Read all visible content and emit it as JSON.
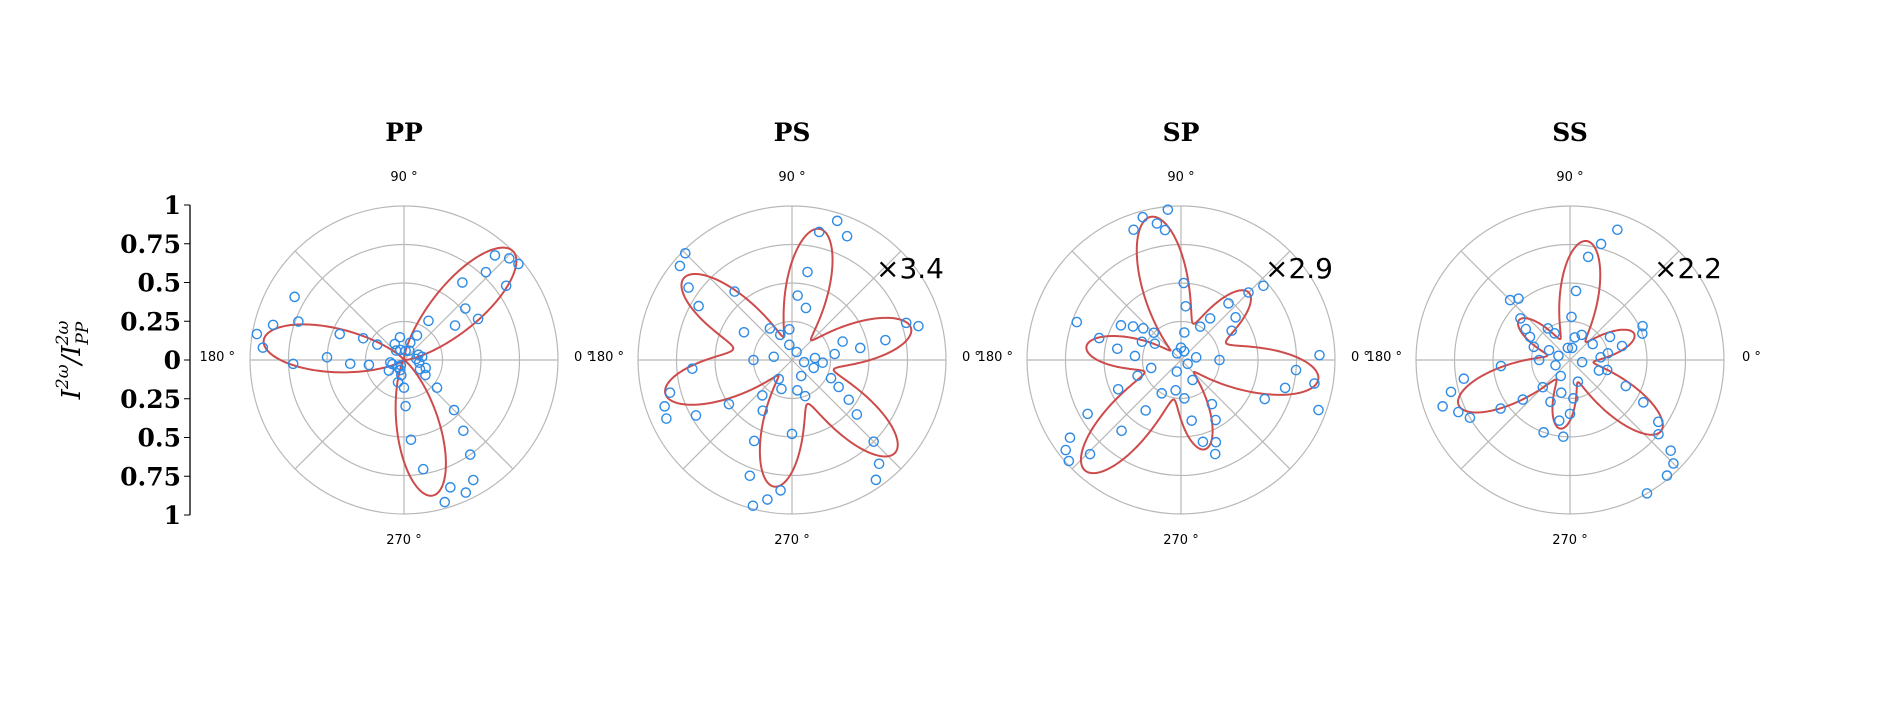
{
  "figure": {
    "ylabel": {
      "main": "I",
      "sup1": "2ω",
      "sep": "/I",
      "sup2": "2ω",
      "sub2": "PP"
    },
    "yticks": [
      "1",
      "0.75",
      "0.5",
      "0.25",
      "0",
      "0.25",
      "0.5",
      "0.75",
      "1"
    ]
  },
  "colors": {
    "fit": "#cd4b4b",
    "points": "#2e8be6",
    "grid": "#b8b8b8",
    "axis": "#000000"
  },
  "chart_data": [
    {
      "type": "scatter",
      "polar": true,
      "title": "PP",
      "scale_label": "",
      "angle_labels": [
        "90 °",
        "180 °",
        "270 °",
        "0 °"
      ],
      "rlim": [
        0,
        1
      ],
      "radial_grid": [
        0.25,
        0.5,
        0.75,
        1.0
      ],
      "angular_grid_deg": [
        0,
        45,
        90,
        135,
        180,
        225,
        270,
        315
      ],
      "fit_lobes": [
        {
          "angle": 45,
          "r": 1.0
        },
        {
          "angle": 172,
          "r": 0.92
        },
        {
          "angle": 282,
          "r": 0.9
        }
      ],
      "series": [
        {
          "name": "",
          "points": [
            [
              40,
              0.97
            ],
            [
              44,
              0.95
            ],
            [
              49,
              0.9
            ],
            [
              36,
              0.82
            ],
            [
              47,
              0.78
            ],
            [
              53,
              0.63
            ],
            [
              29,
              0.55
            ],
            [
              40,
              0.52
            ],
            [
              34,
              0.4
            ],
            [
              58,
              0.3
            ],
            [
              62,
              0.18
            ],
            [
              70,
              0.12
            ],
            [
              80,
              0.06
            ],
            [
              150,
              0.82
            ],
            [
              160,
              0.73
            ],
            [
              165,
              0.88
            ],
            [
              170,
              0.97
            ],
            [
              175,
              0.92
            ],
            [
              182,
              0.72
            ],
            [
              178,
              0.5
            ],
            [
              184,
              0.35
            ],
            [
              188,
              0.23
            ],
            [
              158,
              0.45
            ],
            [
              152,
              0.3
            ],
            [
              150,
              0.2
            ],
            [
              286,
              0.96
            ],
            [
              290,
              0.88
            ],
            [
              295,
              0.95
            ],
            [
              300,
              0.9
            ],
            [
              280,
              0.72
            ],
            [
              275,
              0.52
            ],
            [
              272,
              0.3
            ],
            [
              270,
              0.18
            ],
            [
              305,
              0.75
            ],
            [
              310,
              0.6
            ],
            [
              315,
              0.46
            ],
            [
              320,
              0.28
            ],
            [
              325,
              0.17
            ],
            [
              330,
              0.12
            ],
            [
              350,
              0.1
            ],
            [
              5,
              0.08
            ],
            [
              20,
              0.1
            ],
            [
              110,
              0.07
            ],
            [
              130,
              0.08
            ],
            [
              200,
              0.08
            ],
            [
              230,
              0.06
            ],
            [
              250,
              0.07
            ],
            [
              255,
              0.15
            ],
            [
              260,
              0.1
            ],
            [
              215,
              0.12
            ],
            [
              100,
              0.15
            ],
            [
              60,
              0.07
            ],
            [
              10,
              0.12
            ],
            [
              120,
              0.12
            ],
            [
              340,
              0.15
            ],
            [
              240,
              0.04
            ],
            [
              190,
              0.09
            ]
          ]
        }
      ]
    },
    {
      "type": "scatter",
      "polar": true,
      "title": "PS",
      "scale_label": "×3.4",
      "angle_labels": [
        "90 °",
        "180 °",
        "270 °",
        "0 °"
      ],
      "rlim": [
        0,
        1
      ],
      "radial_grid": [
        0.25,
        0.5,
        0.75,
        1.0
      ],
      "angular_grid_deg": [
        0,
        45,
        90,
        135,
        180,
        225,
        270,
        315
      ],
      "fit_lobes": [
        {
          "angle": 15,
          "r": 0.8
        },
        {
          "angle": 78,
          "r": 0.87
        },
        {
          "angle": 143,
          "r": 0.88
        },
        {
          "angle": 195,
          "r": 0.85
        },
        {
          "angle": 262,
          "r": 0.83
        },
        {
          "angle": 318,
          "r": 0.9
        }
      ],
      "series": [
        {
          "name": "",
          "points": [
            [
              15,
              0.85
            ],
            [
              18,
              0.78
            ],
            [
              12,
              0.62
            ],
            [
              10,
              0.45
            ],
            [
              20,
              0.35
            ],
            [
              8,
              0.28
            ],
            [
              5,
              0.15
            ],
            [
              72,
              0.95
            ],
            [
              78,
              0.85
            ],
            [
              66,
              0.88
            ],
            [
              80,
              0.58
            ],
            [
              85,
              0.42
            ],
            [
              75,
              0.35
            ],
            [
              95,
              0.2
            ],
            [
              135,
              0.98
            ],
            [
              140,
              0.95
            ],
            [
              145,
              0.82
            ],
            [
              150,
              0.7
            ],
            [
              130,
              0.58
            ],
            [
              125,
              0.25
            ],
            [
              115,
              0.18
            ],
            [
              150,
              0.36
            ],
            [
              185,
              0.65
            ],
            [
              195,
              0.82
            ],
            [
              200,
              0.88
            ],
            [
              205,
              0.9
            ],
            [
              210,
              0.72
            ],
            [
              215,
              0.5
            ],
            [
              180,
              0.25
            ],
            [
              255,
              0.98
            ],
            [
              260,
              0.92
            ],
            [
              265,
              0.85
            ],
            [
              250,
              0.8
            ],
            [
              245,
              0.58
            ],
            [
              240,
              0.38
            ],
            [
              250,
              0.2
            ],
            [
              270,
              0.48
            ],
            [
              305,
              0.95
            ],
            [
              310,
              0.88
            ],
            [
              315,
              0.75
            ],
            [
              320,
              0.55
            ],
            [
              325,
              0.45
            ],
            [
              330,
              0.35
            ],
            [
              335,
              0.28
            ],
            [
              340,
              0.15
            ],
            [
              350,
              0.08
            ],
            [
              355,
              0.2
            ],
            [
              230,
              0.3
            ],
            [
              60,
              0.06
            ],
            [
              100,
              0.1
            ],
            [
              280,
              0.2
            ],
            [
              290,
              0.25
            ],
            [
              300,
              0.12
            ],
            [
              170,
              0.12
            ],
            [
              235,
              0.15
            ]
          ]
        }
      ]
    },
    {
      "type": "scatter",
      "polar": true,
      "title": "SP",
      "scale_label": "×2.9",
      "angle_labels": [
        "90 °",
        "180 °",
        "270 °",
        "0 °"
      ],
      "rlim": [
        0,
        1
      ],
      "radial_grid": [
        0.25,
        0.5,
        0.75,
        1.0
      ],
      "angular_grid_deg": [
        0,
        45,
        90,
        135,
        180,
        225,
        270,
        315
      ],
      "fit_lobes": [
        {
          "angle": 45,
          "r": 0.62
        },
        {
          "angle": 102,
          "r": 0.95
        },
        {
          "angle": 172,
          "r": 0.62
        },
        {
          "angle": 229,
          "r": 0.95
        },
        {
          "angle": 285,
          "r": 0.6
        },
        {
          "angle": 352,
          "r": 0.9
        }
      ],
      "series": [
        {
          "name": "",
          "points": [
            [
              42,
              0.72
            ],
            [
              45,
              0.62
            ],
            [
              50,
              0.48
            ],
            [
              38,
              0.45
            ],
            [
              30,
              0.38
            ],
            [
              55,
              0.33
            ],
            [
              60,
              0.25
            ],
            [
              95,
              0.98
            ],
            [
              100,
              0.9
            ],
            [
              105,
              0.96
            ],
            [
              110,
              0.9
            ],
            [
              97,
              0.85
            ],
            [
              88,
              0.5
            ],
            [
              85,
              0.35
            ],
            [
              83,
              0.18
            ],
            [
              90,
              0.08
            ],
            [
              160,
              0.72
            ],
            [
              165,
              0.55
            ],
            [
              170,
              0.42
            ],
            [
              175,
              0.3
            ],
            [
              150,
              0.45
            ],
            [
              145,
              0.38
            ],
            [
              140,
              0.32
            ],
            [
              135,
              0.25
            ],
            [
              155,
              0.28
            ],
            [
              148,
              0.2
            ],
            [
              215,
              0.88
            ],
            [
              218,
              0.95
            ],
            [
              222,
              0.98
            ],
            [
              226,
              0.85
            ],
            [
              230,
              0.6
            ],
            [
              235,
              0.4
            ],
            [
              240,
              0.25
            ],
            [
              210,
              0.7
            ],
            [
              205,
              0.45
            ],
            [
              200,
              0.3
            ],
            [
              195,
              0.2
            ],
            [
              275,
              0.25
            ],
            [
              280,
              0.4
            ],
            [
              285,
              0.55
            ],
            [
              290,
              0.65
            ],
            [
              293,
              0.58
            ],
            [
              300,
              0.45
            ],
            [
              305,
              0.35
            ],
            [
              345,
              0.7
            ],
            [
              350,
              0.88
            ],
            [
              355,
              0.75
            ],
            [
              2,
              0.9
            ],
            [
              340,
              0.95
            ],
            [
              335,
              0.6
            ],
            [
              0,
              0.25
            ],
            [
              10,
              0.1
            ],
            [
              260,
              0.2
            ],
            [
              70,
              0.06
            ],
            [
              250,
              0.08
            ],
            [
              120,
              0.05
            ],
            [
              300,
              0.15
            ],
            [
              330,
              0.05
            ]
          ]
        }
      ]
    },
    {
      "type": "scatter",
      "polar": true,
      "title": "SS",
      "scale_label": "×2.2",
      "angle_labels": [
        "90 °",
        "180 °",
        "270 °",
        "0 °"
      ],
      "rlim": [
        0,
        1
      ],
      "radial_grid": [
        0.25,
        0.5,
        0.75,
        1.0
      ],
      "angular_grid_deg": [
        0,
        45,
        90,
        135,
        180,
        225,
        270,
        315
      ],
      "fit_lobes": [
        {
          "angle": 22,
          "r": 0.45
        },
        {
          "angle": 82,
          "r": 0.78
        },
        {
          "angle": 142,
          "r": 0.42
        },
        {
          "angle": 202,
          "r": 0.78
        },
        {
          "angle": 262,
          "r": 0.45
        },
        {
          "angle": 322,
          "r": 0.75
        }
      ],
      "series": [
        {
          "name": "",
          "points": [
            [
              70,
              0.9
            ],
            [
              75,
              0.78
            ],
            [
              80,
              0.68
            ],
            [
              85,
              0.45
            ],
            [
              88,
              0.28
            ],
            [
              65,
              0.18
            ],
            [
              78,
              0.15
            ],
            [
              80,
              0.08
            ],
            [
              20,
              0.5
            ],
            [
              25,
              0.52
            ],
            [
              15,
              0.35
            ],
            [
              10,
              0.25
            ],
            [
              30,
              0.3
            ],
            [
              35,
              0.18
            ],
            [
              5,
              0.2
            ],
            [
              130,
              0.52
            ],
            [
              135,
              0.55
            ],
            [
              140,
              0.42
            ],
            [
              145,
              0.35
            ],
            [
              150,
              0.3
            ],
            [
              125,
              0.25
            ],
            [
              120,
              0.2
            ],
            [
              155,
              0.15
            ],
            [
              160,
              0.25
            ],
            [
              190,
              0.7
            ],
            [
              195,
              0.8
            ],
            [
              200,
              0.88
            ],
            [
              205,
              0.8
            ],
            [
              210,
              0.75
            ],
            [
              215,
              0.55
            ],
            [
              220,
              0.4
            ],
            [
              185,
              0.45
            ],
            [
              180,
              0.2
            ],
            [
              225,
              0.25
            ],
            [
              255,
              0.22
            ],
            [
              260,
              0.4
            ],
            [
              265,
              0.5
            ],
            [
              270,
              0.35
            ],
            [
              275,
              0.25
            ],
            [
              250,
              0.5
            ],
            [
              245,
              0.3
            ],
            [
              315,
              0.95
            ],
            [
              318,
              0.88
            ],
            [
              320,
              0.75
            ],
            [
              325,
              0.7
            ],
            [
              330,
              0.55
            ],
            [
              335,
              0.4
            ],
            [
              340,
              0.2
            ],
            [
              345,
              0.25
            ],
            [
              300,
              1.0
            ],
            [
              310,
              0.98
            ],
            [
              100,
              0.08
            ],
            [
              160,
              0.08
            ],
            [
              240,
              0.12
            ],
            [
              290,
              0.15
            ],
            [
              350,
              0.08
            ],
            [
              200,
              0.1
            ]
          ]
        }
      ]
    }
  ]
}
